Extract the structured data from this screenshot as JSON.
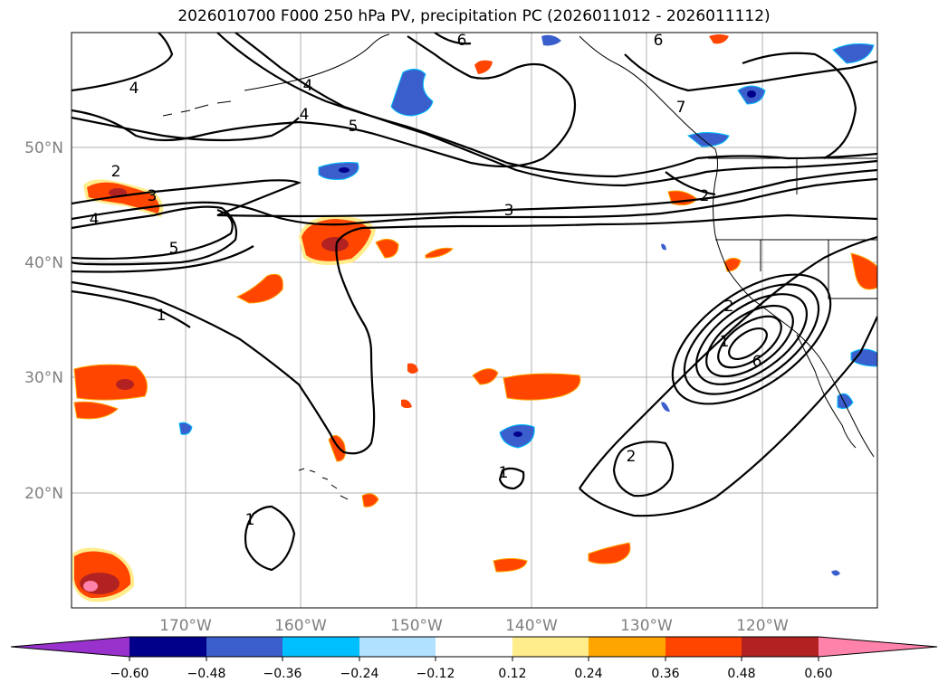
{
  "title": "2026010700 F000 250 hPa PV, precipitation PC (2026011012 - 2026011112)",
  "map": {
    "lat_labels": [
      "50°N",
      "40°N",
      "30°N",
      "20°N"
    ],
    "lon_labels": [
      "170°W",
      "160°W",
      "150°W",
      "140°W",
      "130°W",
      "120°W"
    ],
    "contour_labels": [
      "6",
      "6",
      "7",
      "4",
      "5",
      "4",
      "4",
      "2",
      "3",
      "4",
      "5",
      "3",
      "2",
      "1",
      "2",
      "1",
      "6",
      "2",
      "1",
      "1"
    ]
  },
  "colorbar": {
    "ticks": [
      "−0.60",
      "−0.48",
      "−0.36",
      "−0.24",
      "−0.12",
      "0.12",
      "0.24",
      "0.36",
      "0.48",
      "0.60"
    ],
    "colors": {
      "under": "#9932cc",
      "c1": "#00008b",
      "c2": "#3a5fcd",
      "c3": "#00bfff",
      "c4": "#b0e2ff",
      "c5": "#ffffff",
      "c6": "#ffec8b",
      "c7": "#ffa500",
      "c8": "#ff4500",
      "c9": "#b22222",
      "over": "#ff82ab"
    }
  }
}
